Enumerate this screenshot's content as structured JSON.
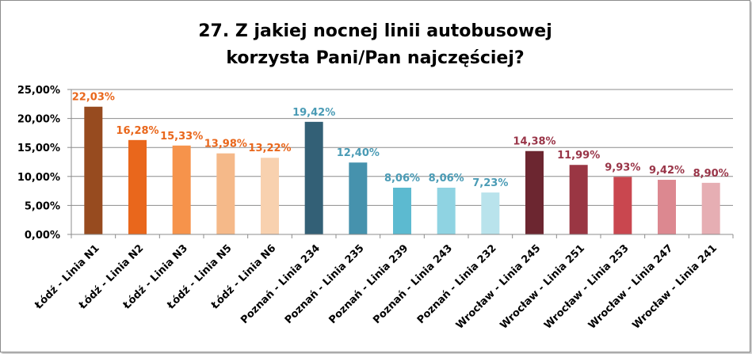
{
  "chart_data": {
    "type": "bar",
    "title_line1": "27. Z jakiej nocnej linii autobusowej",
    "title_line2": "korzysta Pani/Pan  najczęściej?",
    "xlabel": "",
    "ylabel": "",
    "ylim": [
      0,
      25
    ],
    "yticks": [
      "0,00%",
      "5,00%",
      "10,00%",
      "15,00%",
      "20,00%",
      "25,00%"
    ],
    "grid": true,
    "legend": "none",
    "categories": [
      "Łódź - Linia N1",
      "Łódź - Linia N2",
      "Łódź - Linia N3",
      "Łódź - Linia N5",
      "Łódź - Linia N6",
      "Poznań - Linia 234",
      "Poznań - Linia 235",
      "Poznań - Linia 239",
      "Poznań - Linia 243",
      "Poznań - Linia 232",
      "Wrocław - Linia 245",
      "Wrocław - Linia 251",
      "Wrocław - Linia 253",
      "Wrocław - Linia 247",
      "Wrocław - Linia 241"
    ],
    "values": [
      22.03,
      16.28,
      15.33,
      13.98,
      13.22,
      19.42,
      12.4,
      8.06,
      8.06,
      7.23,
      14.38,
      11.99,
      9.93,
      9.42,
      8.9
    ],
    "value_labels": [
      "22,03%",
      "16,28%",
      "15,33%",
      "13,98%",
      "13,22%",
      "19,42%",
      "12,40%",
      "8,06%",
      "8,06%",
      "7,23%",
      "14,38%",
      "11,99%",
      "9,93%",
      "9,42%",
      "8,90%"
    ],
    "bar_colors": [
      "#974b1f",
      "#e9671c",
      "#f6934b",
      "#f5b989",
      "#f8d1af",
      "#336076",
      "#4692ad",
      "#5cbad0",
      "#8fd3e2",
      "#b9e3ec",
      "#6c2630",
      "#9a3643",
      "#c9474f",
      "#dc8890",
      "#e6aeb3"
    ],
    "label_colors": [
      "#e9671c",
      "#e9671c",
      "#e9671c",
      "#e9671c",
      "#e9671c",
      "#4a9bb5",
      "#4a9bb5",
      "#4a9bb5",
      "#4a9bb5",
      "#4a9bb5",
      "#993548",
      "#993548",
      "#993548",
      "#993548",
      "#993548"
    ]
  }
}
